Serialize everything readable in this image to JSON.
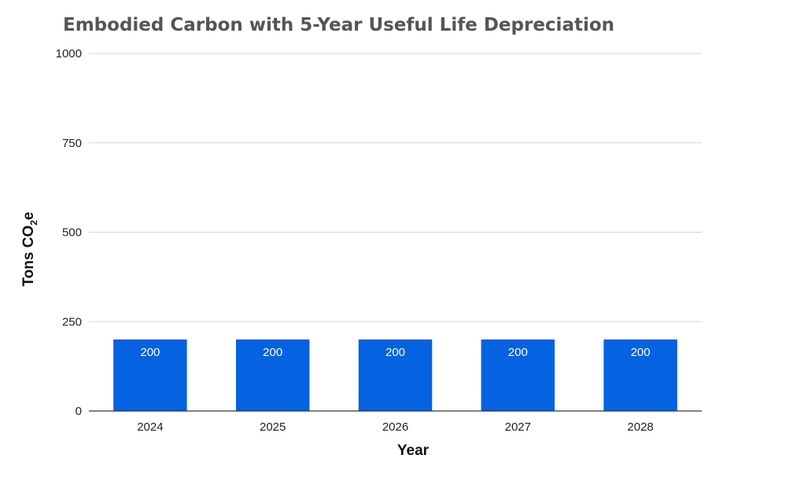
{
  "chart_data": {
    "type": "bar",
    "title": "Embodied Carbon with 5-Year Useful Life Depreciation",
    "xlabel": "Year",
    "ylabel": "Tons CO",
    "ylabel_subscript": "2",
    "ylabel_suffix": "e",
    "categories": [
      "2024",
      "2025",
      "2026",
      "2027",
      "2028"
    ],
    "values": [
      200,
      200,
      200,
      200,
      200
    ],
    "data_labels": [
      "200",
      "200",
      "200",
      "200",
      "200"
    ],
    "ylim": [
      0,
      1000
    ],
    "yticks": [
      0,
      250,
      500,
      750,
      1000
    ],
    "ytick_labels": [
      "0",
      "250",
      "500",
      "750",
      "1000"
    ],
    "grid": true,
    "legend": "none",
    "colors": {
      "bar": "#0562e0",
      "grid": "#d6d6d6",
      "title": "#555555"
    }
  }
}
